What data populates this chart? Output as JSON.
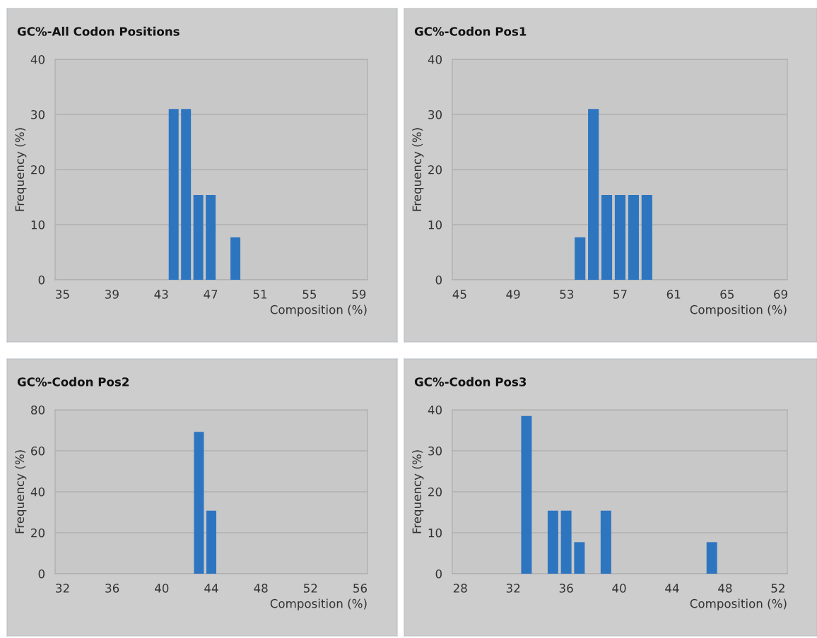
{
  "chart_data": [
    {
      "type": "bar",
      "title": "GC%-All Codon Positions",
      "xlabel": "Composition (%)",
      "ylabel": "Frequency (%)",
      "x": [
        44,
        45,
        46,
        47,
        49
      ],
      "values": [
        31,
        31,
        15.4,
        15.4,
        7.7
      ],
      "color": "#2e75c0",
      "xlim": [
        34.4,
        59.7
      ],
      "xticks": [
        35,
        39,
        43,
        47,
        51,
        55,
        59
      ],
      "ylim": [
        0,
        40
      ],
      "yticks": [
        0,
        10,
        20,
        30,
        40
      ],
      "grid": "y"
    },
    {
      "type": "bar",
      "title": "GC%-Codon Pos1",
      "xlabel": "Composition (%)",
      "ylabel": "Frequency (%)",
      "x": [
        54,
        55,
        56,
        57,
        58,
        59
      ],
      "values": [
        7.7,
        31,
        15.4,
        15.4,
        15.4,
        15.4
      ],
      "color": "#2e75c0",
      "xlim": [
        44.45,
        69.5
      ],
      "xticks": [
        45,
        49,
        53,
        57,
        61,
        65,
        69
      ],
      "ylim": [
        0,
        40
      ],
      "yticks": [
        0,
        10,
        20,
        30,
        40
      ],
      "grid": "y"
    },
    {
      "type": "bar",
      "title": "GC%-Codon Pos2",
      "xlabel": "Composition (%)",
      "ylabel": "Frequency (%)",
      "x": [
        43,
        44
      ],
      "values": [
        69.2,
        30.8
      ],
      "color": "#2e75c0",
      "xlim": [
        31.4,
        56.6
      ],
      "xticks": [
        32,
        36,
        40,
        44,
        48,
        52,
        56
      ],
      "ylim": [
        0,
        80
      ],
      "yticks": [
        0,
        20,
        40,
        60,
        80
      ],
      "grid": "y"
    },
    {
      "type": "bar",
      "title": "GC%-Codon Pos3",
      "xlabel": "Composition (%)",
      "ylabel": "Frequency (%)",
      "x": [
        33,
        35,
        36,
        37,
        39,
        47
      ],
      "values": [
        38.5,
        15.4,
        15.4,
        7.7,
        15.4,
        7.7
      ],
      "color": "#2e75c0",
      "xlim": [
        27.4,
        52.7
      ],
      "xticks": [
        28,
        32,
        36,
        40,
        44,
        48,
        52
      ],
      "ylim": [
        0,
        40
      ],
      "yticks": [
        0,
        10,
        20,
        30,
        40
      ],
      "grid": "y"
    }
  ]
}
